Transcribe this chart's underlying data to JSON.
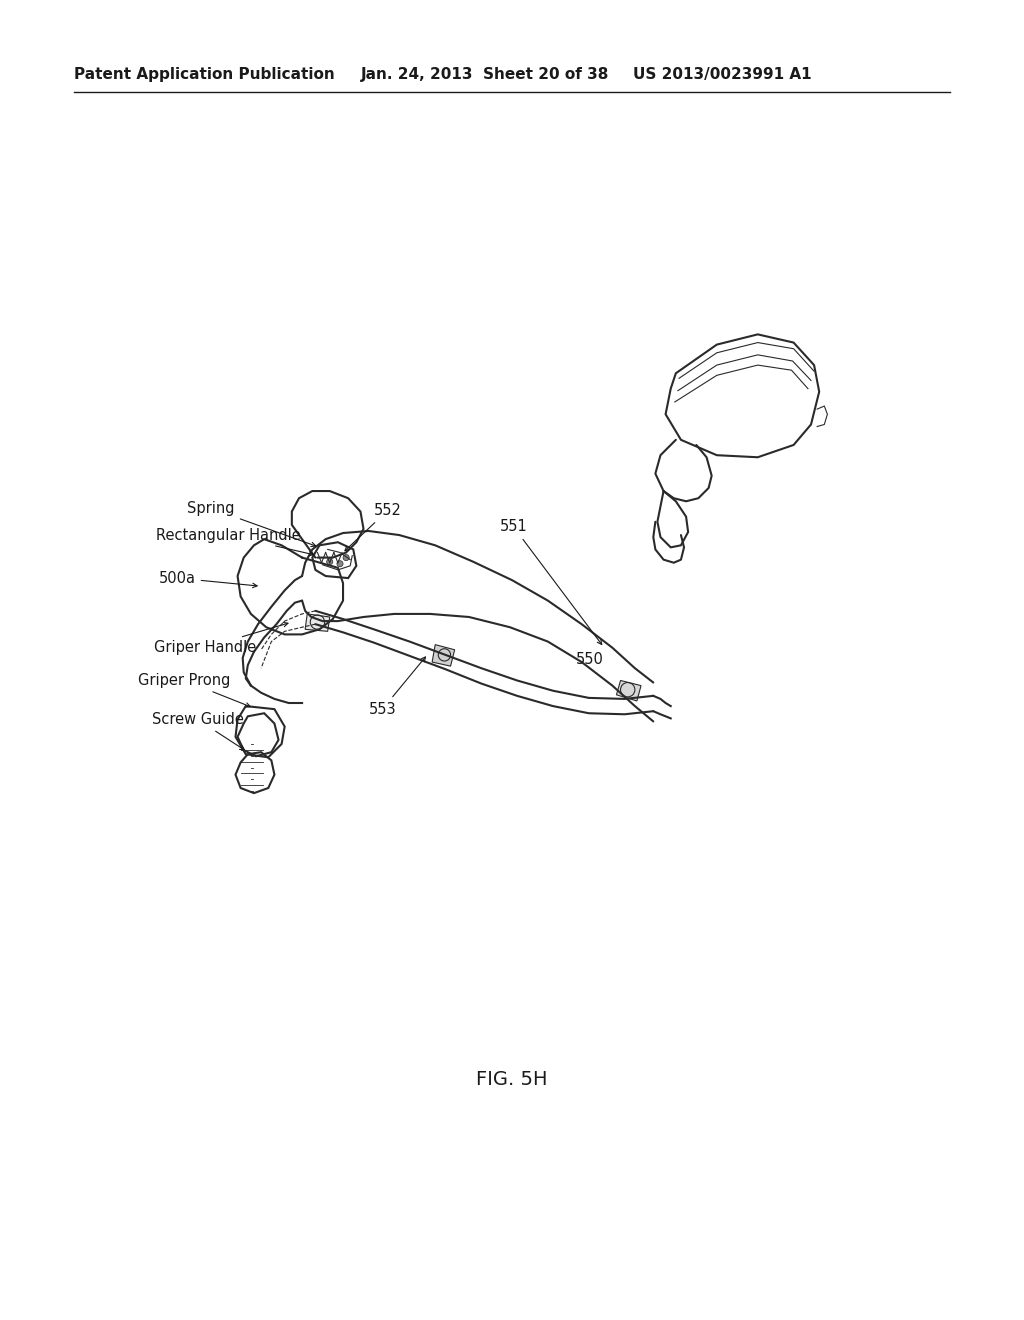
{
  "bg_color": "#ffffff",
  "header_left": "Patent Application Publication",
  "header_center": "Jan. 24, 2013  Sheet 20 of 38",
  "header_right": "US 2013/0023991 A1",
  "fig_label": "FIG. 5H",
  "text_color": "#1a1a1a",
  "line_color": "#2a2a2a",
  "font_size_header": 11,
  "font_size_label": 10.5,
  "font_size_fig": 14
}
